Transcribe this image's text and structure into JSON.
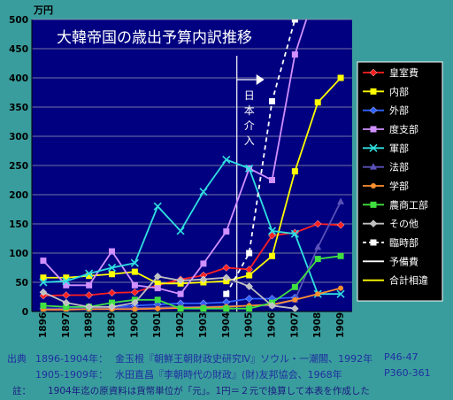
{
  "chart_data": {
    "type": "line",
    "title": "大韓帝国の歳出予算内訳推移",
    "unit_label": "万円",
    "ylim": [
      0,
      500
    ],
    "y_ticks": [
      0,
      50,
      100,
      150,
      200,
      250,
      300,
      350,
      400,
      450,
      500
    ],
    "x": [
      "1896",
      "1897",
      "1898",
      "1899",
      "1900",
      "1901",
      "1902",
      "1903",
      "1904",
      "1905",
      "1906",
      "1907",
      "1908",
      "1909"
    ],
    "grid": true,
    "legend_position": "right",
    "annotation": "日本介入",
    "series": [
      {
        "name": "皇室費",
        "color": "#ff2020",
        "marker": "diamond",
        "dash": "solid",
        "values": [
          27,
          28,
          28,
          32,
          33,
          45,
          55,
          62,
          75,
          72,
          130,
          135,
          150,
          148
        ]
      },
      {
        "name": "内部",
        "color": "#ffff00",
        "marker": "square",
        "dash": "solid",
        "values": [
          58,
          58,
          61,
          64,
          68,
          48,
          48,
          50,
          52,
          62,
          95,
          240,
          358,
          400
        ]
      },
      {
        "name": "外部",
        "color": "#3060ff",
        "marker": "diamond",
        "dash": "solid",
        "values": [
          5,
          5,
          6,
          8,
          10,
          12,
          14,
          14,
          16,
          22,
          22,
          24,
          null,
          null
        ]
      },
      {
        "name": "度支部",
        "color": "#d090ff",
        "marker": "square",
        "dash": "solid",
        "values": [
          87,
          45,
          45,
          103,
          45,
          40,
          30,
          82,
          137,
          245,
          225,
          440,
          560,
          null
        ]
      },
      {
        "name": "軍部",
        "color": "#30e0e0",
        "marker": "x",
        "dash": "solid",
        "values": [
          50,
          52,
          65,
          75,
          83,
          180,
          138,
          205,
          260,
          245,
          138,
          133,
          30,
          30
        ]
      },
      {
        "name": "法部",
        "color": "#5a52b8",
        "marker": "triangle",
        "dash": "solid",
        "values": [
          5,
          5,
          5,
          6,
          6,
          7,
          8,
          8,
          9,
          10,
          10,
          20,
          110,
          188
        ]
      },
      {
        "name": "学部",
        "color": "#ff9030",
        "marker": "circle",
        "dash": "solid",
        "values": [
          3,
          3,
          4,
          4,
          4,
          5,
          6,
          7,
          8,
          10,
          12,
          20,
          30,
          40
        ]
      },
      {
        "name": "農商工部",
        "color": "#40e040",
        "marker": "square",
        "dash": "solid",
        "values": [
          10,
          8,
          8,
          15,
          20,
          20,
          5,
          5,
          5,
          5,
          15,
          42,
          90,
          95
        ]
      },
      {
        "name": "その他",
        "color": "#c0c0c0",
        "marker": "diamond",
        "dash": "solid",
        "values": [
          33,
          15,
          8,
          8,
          15,
          60,
          53,
          55,
          58,
          43,
          10,
          5,
          null,
          null
        ]
      },
      {
        "name": "臨時部",
        "color": "#ffffff",
        "marker": "square",
        "dash": "dashed",
        "values": [
          null,
          null,
          null,
          null,
          null,
          null,
          null,
          null,
          30,
          100,
          360,
          500,
          null,
          null
        ]
      },
      {
        "name": "予備費",
        "color": "#ffffff",
        "marker": "none",
        "dash": "solid",
        "values": [
          null,
          null,
          null,
          null,
          null,
          null,
          null,
          null,
          null,
          null,
          null,
          null,
          null,
          null
        ]
      },
      {
        "name": "合計相違",
        "color": "#ffff00",
        "marker": "none",
        "dash": "solid",
        "values": [
          null,
          null,
          null,
          null,
          null,
          null,
          null,
          null,
          null,
          null,
          null,
          null,
          null,
          null
        ]
      }
    ]
  },
  "source": {
    "label": "出典",
    "line1_years": "1896-1904年：",
    "line1_text": "金玉根『朝鮮王朝財政史研究Ⅳ』ソウル・一潮閣、1992年",
    "line1_pages": "P46-47",
    "line2_years": "1905-1909年：",
    "line2_text": "水田直昌『李朝時代の財政』(財)友邦協会、1968年",
    "line2_pages": "P360-361",
    "note_label": "註：",
    "note_text": "1904年迄の原資料は貨幣単位が「元」。1円＝２元で換算して本表を作成した"
  }
}
